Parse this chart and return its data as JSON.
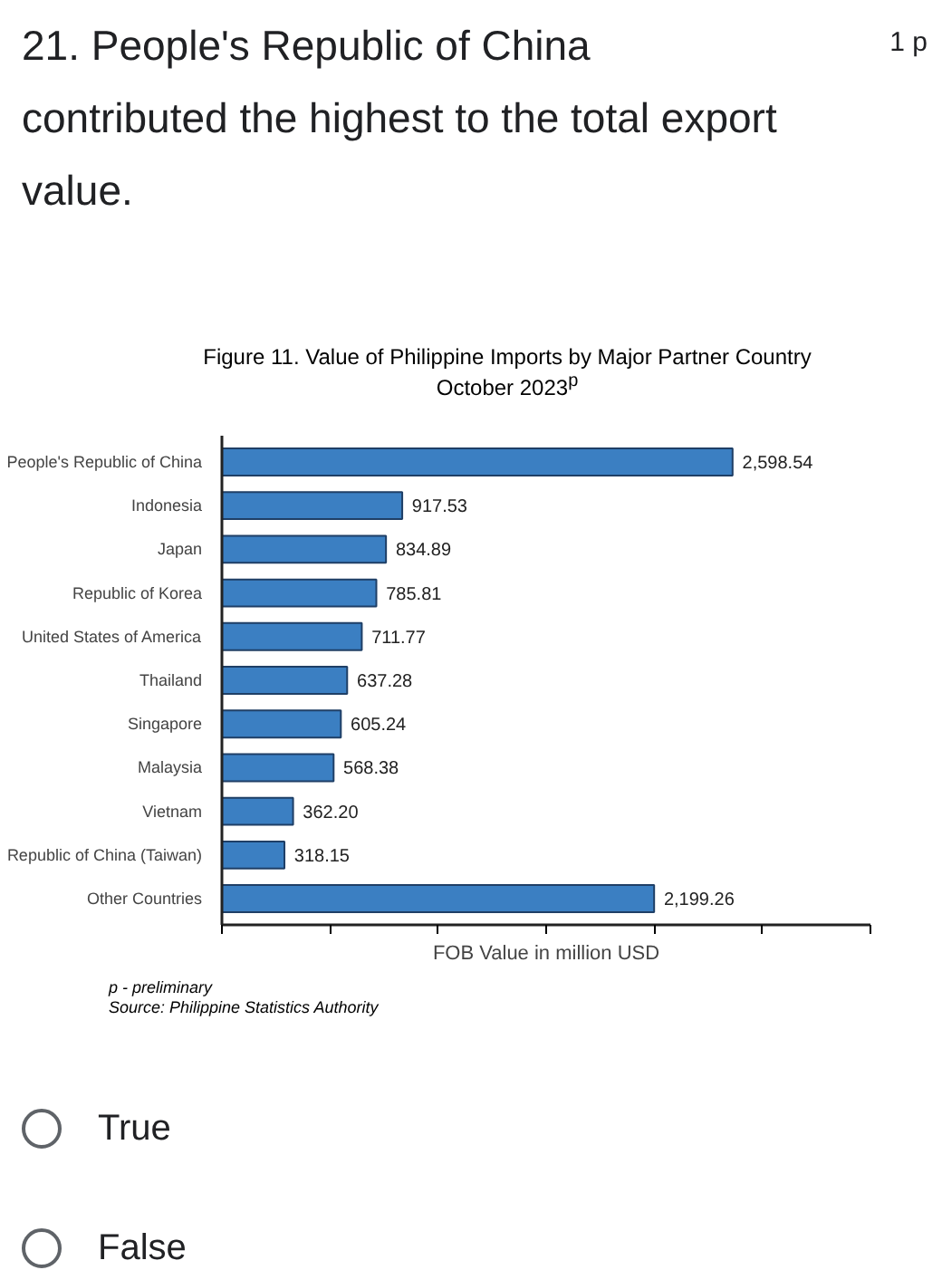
{
  "chart_data": {
    "type": "bar",
    "orientation": "horizontal",
    "title": "Figure 11. Value of Philippine Imports by Major Partner Country",
    "subtitle": "October 2023$^{p}$",
    "xlabel": "FOB Value in million USD",
    "categories": [
      "People's Republic of China",
      "Indonesia",
      "Japan",
      "Republic of Korea",
      "United States of America",
      "Thailand",
      "Singapore",
      "Malaysia",
      "Vietnam",
      "Republic of China (Taiwan)",
      "Other Countries"
    ],
    "values": [
      2598.54,
      917.53,
      834.89,
      785.81,
      711.77,
      637.28,
      605.24,
      568.38,
      362.2,
      318.15,
      2199.26
    ],
    "value_labels": [
      "2,598.54",
      "917.53",
      "834.89",
      "785.81",
      "711.77",
      "637.28",
      "605.24",
      "568.38",
      "362.20",
      "318.15",
      "2,199.26"
    ],
    "color": "#3b7fc2",
    "xlim": [
      0,
      3300
    ],
    "xticks": [
      {
        "value": 0,
        "label": null
      },
      {
        "value": 550,
        "label": null
      },
      {
        "value": 1100,
        "label": null
      },
      {
        "value": 1650,
        "label": null
      },
      {
        "value": 2200,
        "label": null
      },
      {
        "value": 2750,
        "label": null
      },
      {
        "value": 3300,
        "label": null
      }
    ],
    "tick_labels": "y",
    "grid": false,
    "annotations": [
      "21. People's Republic of China contributed the highest to the total export value.",
      "1 p",
      "p - preliminary",
      "Source: Philippine Statistics Authority",
      "True",
      "False"
    ]
  }
}
